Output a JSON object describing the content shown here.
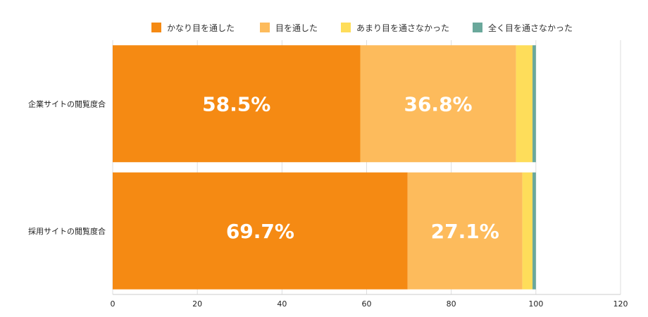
{
  "chart_data": {
    "type": "bar",
    "orientation": "horizontal",
    "stacked": true,
    "categories": [
      "企業サイトの閲覧度合",
      "採用サイトの閲覧度合"
    ],
    "series": [
      {
        "name": "かなり目を通した",
        "values": [
          58.5,
          69.7
        ],
        "color": "#F58A13",
        "labels": [
          "58.5%",
          "69.7%"
        ]
      },
      {
        "name": "目を通した",
        "values": [
          36.8,
          27.1
        ],
        "color": "#FDBB5C",
        "labels": [
          "36.8%",
          "27.1%"
        ]
      },
      {
        "name": "あまり目を通さなかった",
        "values": [
          3.9,
          2.4
        ],
        "color": "#FEDD5A",
        "labels": [
          "",
          ""
        ]
      },
      {
        "name": "全く目を通さなかった",
        "values": [
          0.8,
          0.8
        ],
        "color": "#6AA89B",
        "labels": [
          "",
          ""
        ]
      }
    ],
    "xlim": [
      0,
      120
    ],
    "xticks": [
      0,
      20,
      40,
      60,
      80,
      100,
      120
    ],
    "grid": true,
    "legend_position": "top"
  }
}
